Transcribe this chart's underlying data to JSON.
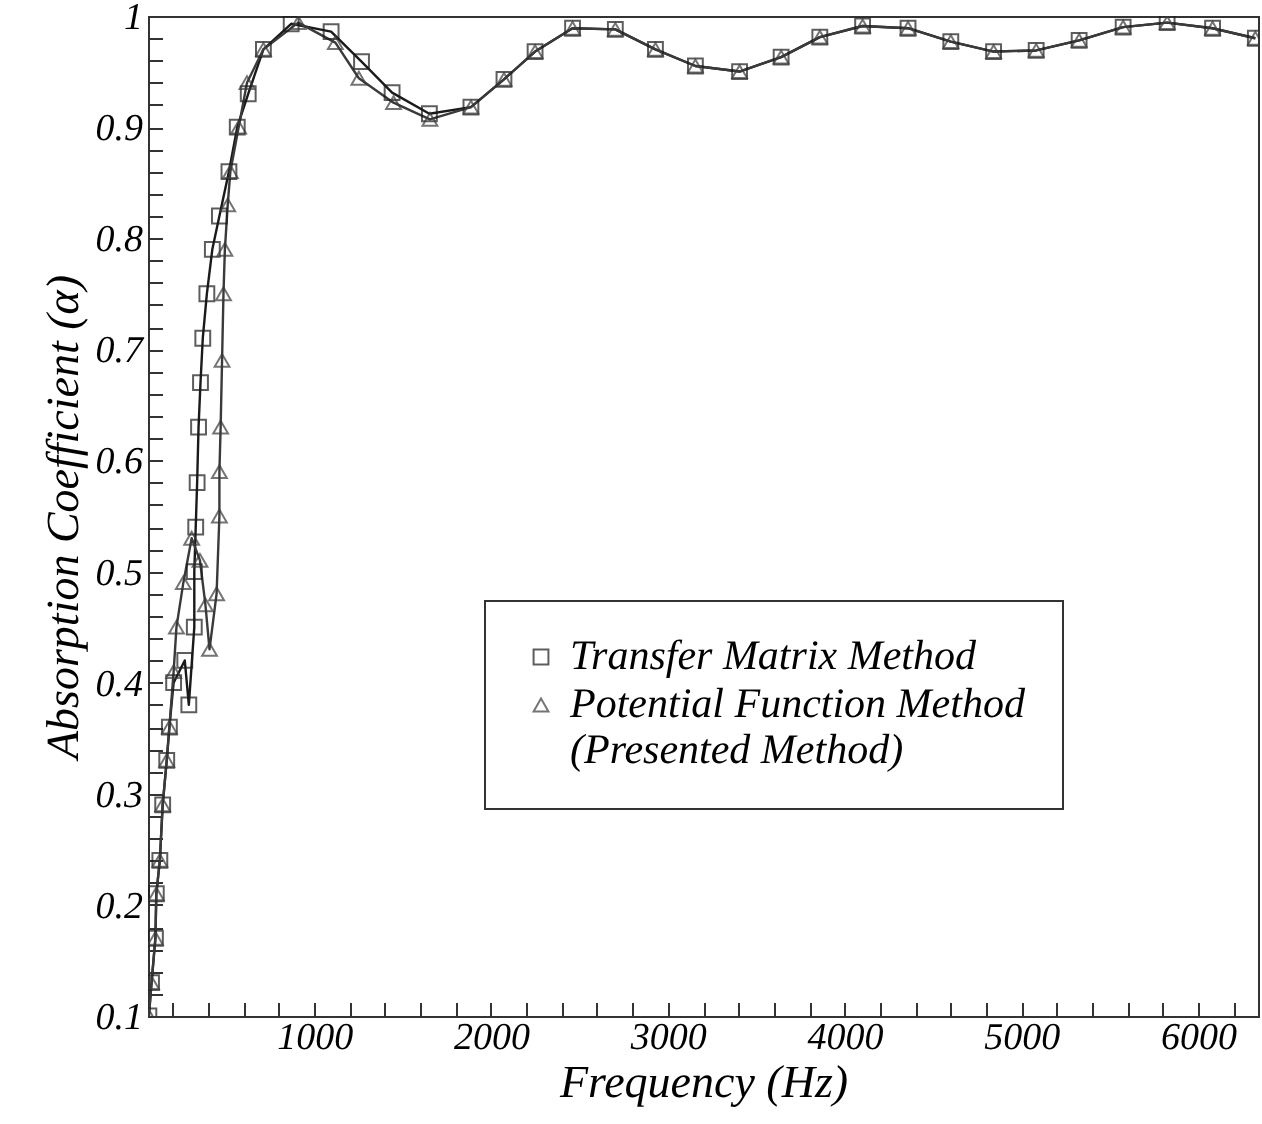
{
  "chart_data": {
    "type": "line",
    "xlabel": "Frequency (Hz)",
    "ylabel": "Absorption Coefficient (α)",
    "xlim": [
      60,
      6340
    ],
    "ylim": [
      0.1,
      1
    ],
    "xticks": [
      {
        "value": 200,
        "label": null
      },
      {
        "value": 400,
        "label": null
      },
      {
        "value": 600,
        "label": null
      },
      {
        "value": 800,
        "label": null
      },
      1000,
      {
        "value": 1200,
        "label": null
      },
      {
        "value": 1400,
        "label": null
      },
      {
        "value": 1600,
        "label": null
      },
      {
        "value": 1800,
        "label": null
      },
      2000,
      {
        "value": 2200,
        "label": null
      },
      {
        "value": 2400,
        "label": null
      },
      {
        "value": 2600,
        "label": null
      },
      {
        "value": 2800,
        "label": null
      },
      3000,
      {
        "value": 3200,
        "label": null
      },
      {
        "value": 3400,
        "label": null
      },
      {
        "value": 3600,
        "label": null
      },
      {
        "value": 3800,
        "label": null
      },
      4000,
      {
        "value": 4200,
        "label": null
      },
      {
        "value": 4400,
        "label": null
      },
      {
        "value": 4600,
        "label": null
      },
      {
        "value": 4800,
        "label": null
      },
      5000,
      {
        "value": 5200,
        "label": null
      },
      {
        "value": 5400,
        "label": null
      },
      {
        "value": 5600,
        "label": null
      },
      {
        "value": 5800,
        "label": null
      },
      6000,
      {
        "value": 6200,
        "label": null
      }
    ],
    "yticks": [
      0.1,
      {
        "value": 0.12,
        "label": null
      },
      {
        "value": 0.14,
        "label": null
      },
      {
        "value": 0.16,
        "label": null
      },
      {
        "value": 0.18,
        "label": null
      },
      0.2,
      {
        "value": 0.22,
        "label": null
      },
      {
        "value": 0.24,
        "label": null
      },
      {
        "value": 0.26,
        "label": null
      },
      {
        "value": 0.28,
        "label": null
      },
      0.3,
      {
        "value": 0.32,
        "label": null
      },
      {
        "value": 0.34,
        "label": null
      },
      {
        "value": 0.36,
        "label": null
      },
      {
        "value": 0.38,
        "label": null
      },
      0.4,
      {
        "value": 0.42,
        "label": null
      },
      {
        "value": 0.44,
        "label": null
      },
      {
        "value": 0.46,
        "label": null
      },
      {
        "value": 0.48,
        "label": null
      },
      0.5,
      {
        "value": 0.52,
        "label": null
      },
      {
        "value": 0.54,
        "label": null
      },
      {
        "value": 0.56,
        "label": null
      },
      {
        "value": 0.58,
        "label": null
      },
      0.6,
      {
        "value": 0.62,
        "label": null
      },
      {
        "value": 0.64,
        "label": null
      },
      {
        "value": 0.66,
        "label": null
      },
      {
        "value": 0.68,
        "label": null
      },
      0.7,
      {
        "value": 0.72,
        "label": null
      },
      {
        "value": 0.74,
        "label": null
      },
      {
        "value": 0.76,
        "label": null
      },
      {
        "value": 0.78,
        "label": null
      },
      0.8,
      {
        "value": 0.82,
        "label": null
      },
      {
        "value": 0.84,
        "label": null
      },
      {
        "value": 0.86,
        "label": null
      },
      {
        "value": 0.88,
        "label": null
      },
      0.9,
      {
        "value": 0.92,
        "label": null
      },
      {
        "value": 0.94,
        "label": null
      },
      {
        "value": 0.96,
        "label": null
      },
      {
        "value": 0.98,
        "label": null
      },
      1
    ],
    "grid": false,
    "legend": "right",
    "line_style": "solid",
    "series": [
      {
        "name": "Transfer Matrix Method",
        "color": "#1a1a1a",
        "marker": "square",
        "x": [
          65,
          80,
          102,
          107,
          127,
          143,
          166,
          181,
          205,
          268,
          291,
          322,
          322,
          330,
          338,
          346,
          357,
          370,
          393,
          424,
          464,
          518,
          565,
          627,
          713,
          870,
          1096,
          1268,
          1441,
          1652,
          1887,
          2074,
          2250,
          2462,
          2704,
          2931,
          3157,
          3407,
          3642,
          3861,
          4103,
          4360,
          4602,
          4844,
          5085,
          5328,
          5577,
          5826,
          6083,
          6325
        ],
        "values": [
          0.1,
          0.13,
          0.17,
          0.21,
          0.24,
          0.29,
          0.33,
          0.36,
          0.4,
          0.42,
          0.38,
          0.45,
          0.5,
          0.54,
          0.58,
          0.63,
          0.67,
          0.71,
          0.75,
          0.79,
          0.82,
          0.86,
          0.9,
          0.93,
          0.97,
          0.993,
          0.986,
          0.959,
          0.931,
          0.912,
          0.918,
          0.943,
          0.968,
          0.989,
          0.988,
          0.97,
          0.955,
          0.95,
          0.963,
          0.981,
          0.991,
          0.989,
          0.977,
          0.968,
          0.969,
          0.978,
          0.99,
          0.994,
          0.989,
          0.98
        ]
      },
      {
        "name": "Potential Function Method (Presented Method)",
        "color": "#3a3a3a",
        "marker": "triangle",
        "x": [
          65,
          80,
          102,
          107,
          127,
          143,
          166,
          181,
          205,
          221,
          260,
          307,
          354,
          385,
          408,
          448,
          464,
          464,
          471,
          479,
          487,
          495,
          511,
          526,
          573,
          620,
          713,
          910,
          1120,
          1253,
          1449,
          1655,
          1887,
          2074,
          2250,
          2462,
          2704,
          2931,
          3157,
          3407,
          3642,
          3861,
          4103,
          4360,
          4602,
          4844,
          5085,
          5328,
          5577,
          5826,
          6083,
          6325
        ],
        "values": [
          0.1,
          0.13,
          0.17,
          0.21,
          0.24,
          0.29,
          0.33,
          0.36,
          0.41,
          0.45,
          0.49,
          0.53,
          0.51,
          0.47,
          0.43,
          0.48,
          0.55,
          0.59,
          0.63,
          0.69,
          0.75,
          0.79,
          0.83,
          0.86,
          0.9,
          0.94,
          0.97,
          0.994,
          0.976,
          0.944,
          0.922,
          0.907,
          0.918,
          0.943,
          0.968,
          0.989,
          0.988,
          0.97,
          0.955,
          0.95,
          0.963,
          0.981,
          0.991,
          0.989,
          0.977,
          0.968,
          0.969,
          0.978,
          0.99,
          0.994,
          0.989,
          0.98
        ]
      }
    ]
  }
}
